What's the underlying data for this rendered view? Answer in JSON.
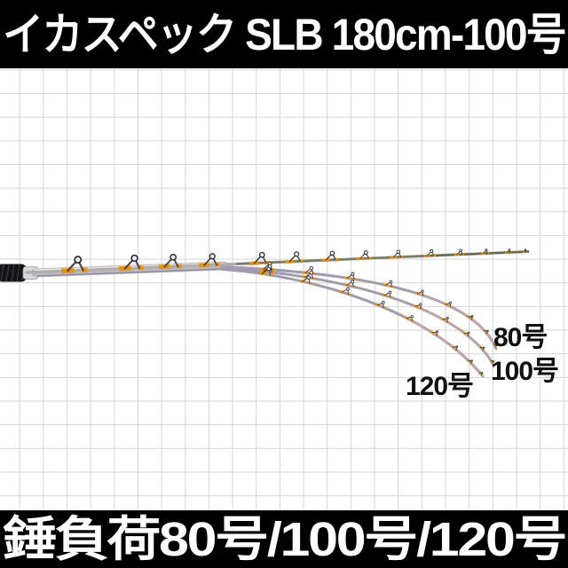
{
  "product_banner": {
    "title": "イカスペック SLB 180cm-100号"
  },
  "spec_banner": {
    "title": "錘負荷80号/100号/120号"
  },
  "bend_labels": {
    "load80": "80号",
    "load100": "100号",
    "load120": "120号"
  },
  "palette": {
    "banner_bg": "#000000",
    "banner_text": "#ffffff",
    "grid_line": "#d5d5d9",
    "paper": "#ffffff",
    "blank_silver": "#bcb9c3",
    "bent_rod": "#a29aae",
    "straight_rod": "#b0aea6",
    "wrap_orange": "#e8930c",
    "grip": "#141417",
    "label_text": "#111111"
  }
}
